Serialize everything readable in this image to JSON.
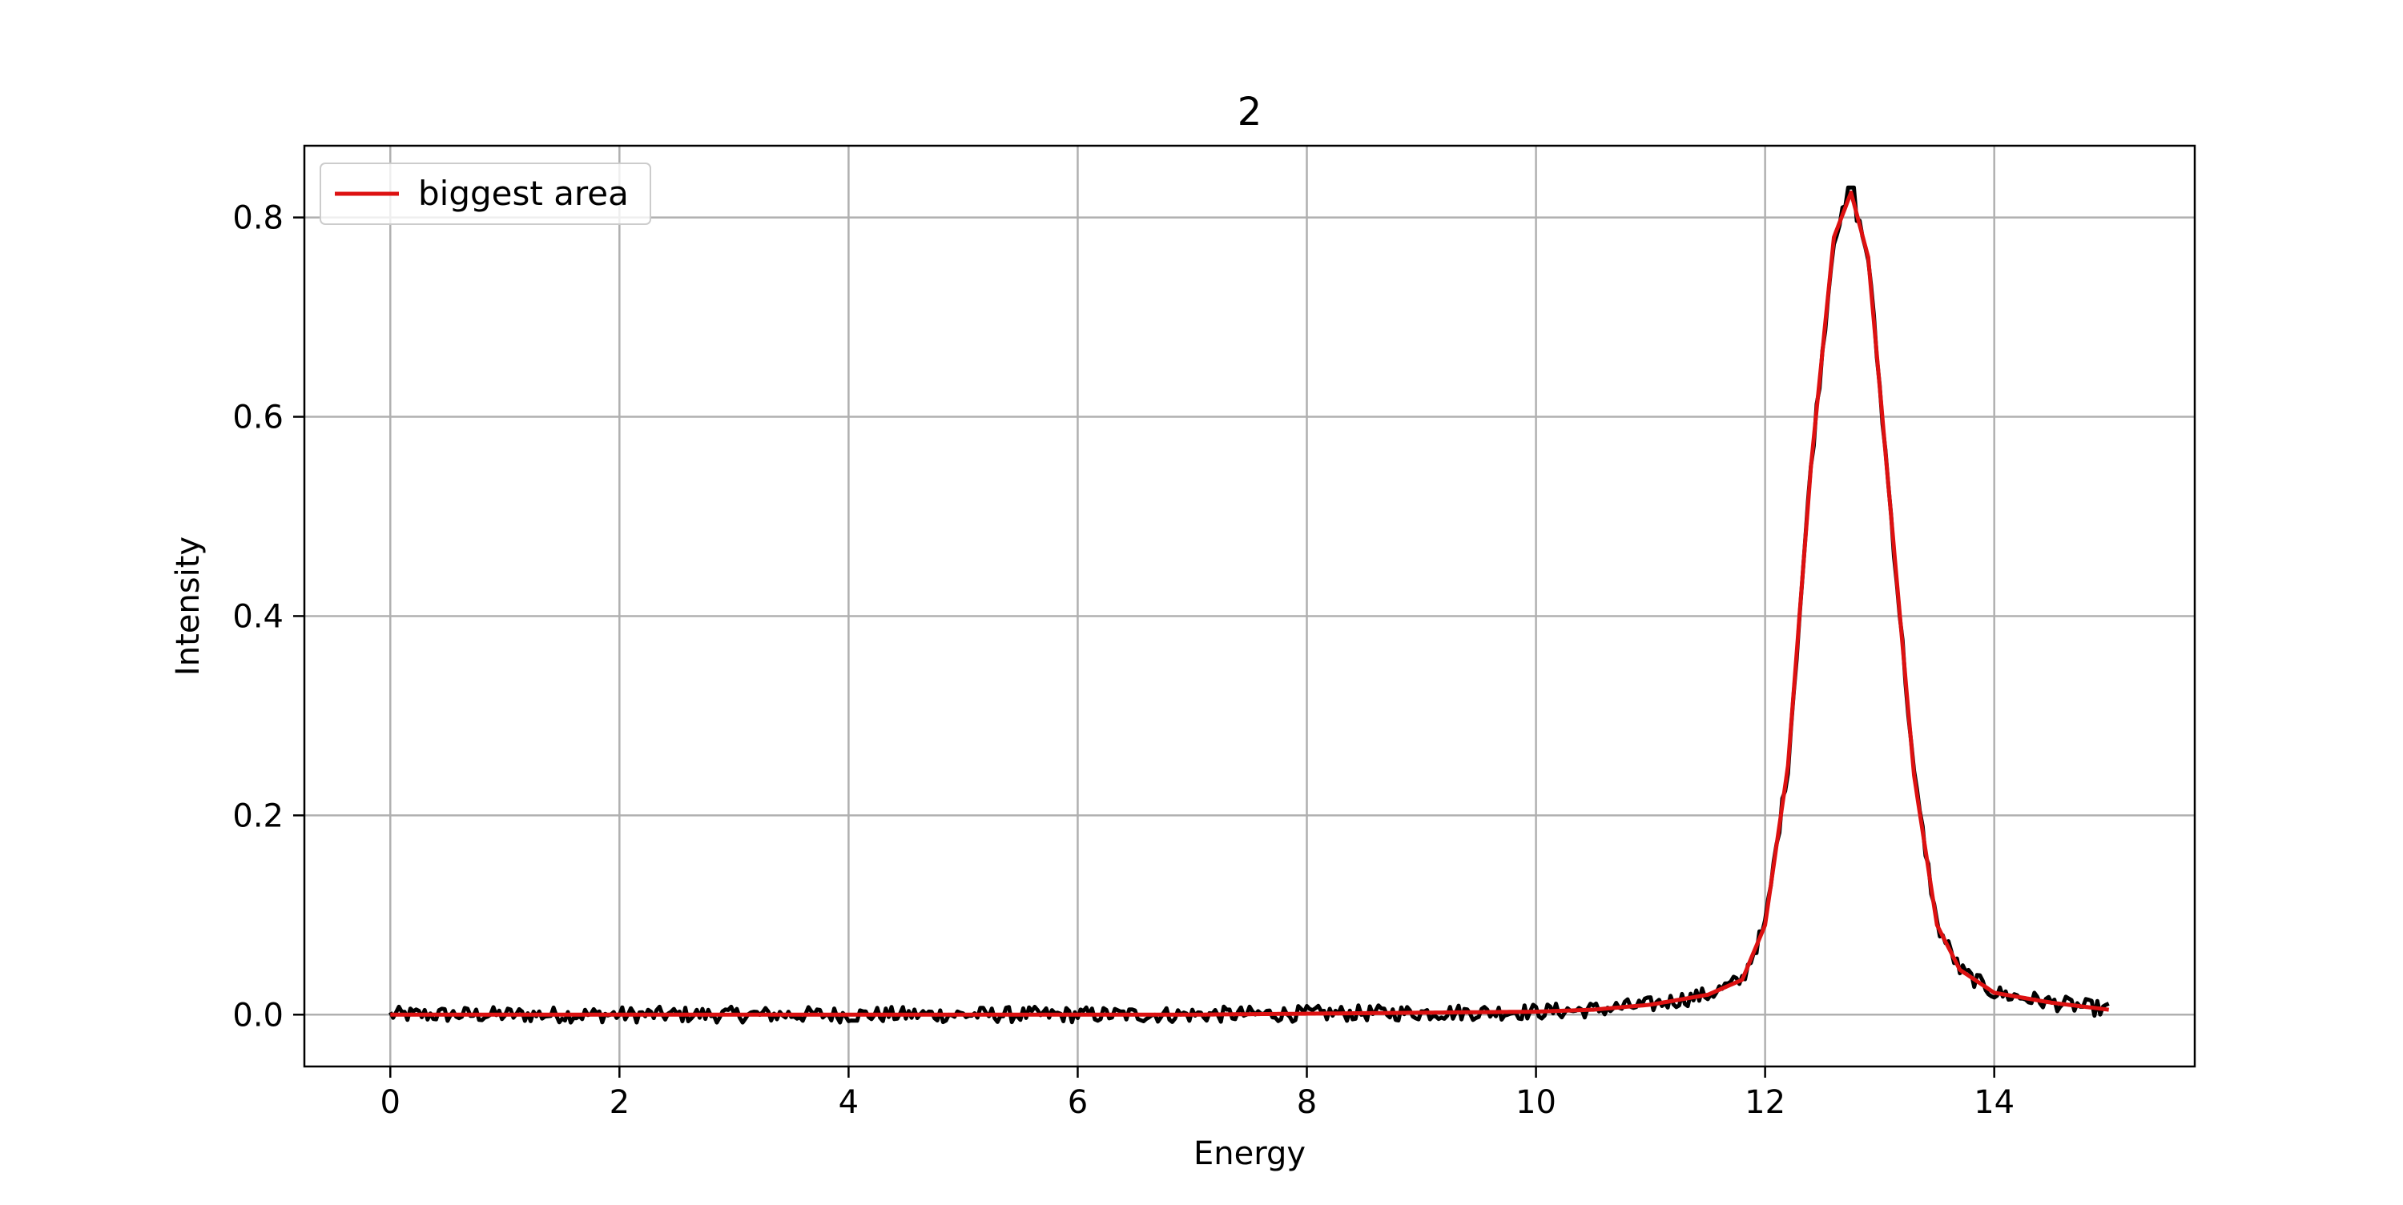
{
  "chart_data": {
    "type": "line",
    "title": "2",
    "xlabel": "Energy",
    "ylabel": "Intensity",
    "xlim": [
      -0.75,
      15.75
    ],
    "ylim": [
      -0.052,
      0.872
    ],
    "xticks": [
      0,
      2,
      4,
      6,
      8,
      10,
      12,
      14
    ],
    "xtick_labels": [
      "0",
      "2",
      "4",
      "6",
      "8",
      "10",
      "12",
      "14"
    ],
    "yticks": [
      0.0,
      0.2,
      0.4,
      0.6,
      0.8
    ],
    "ytick_labels": [
      "0.0",
      "0.2",
      "0.4",
      "0.6",
      "0.8"
    ],
    "grid": true,
    "legend": {
      "placement": "upper left",
      "entries": [
        "biggest area"
      ]
    },
    "series": [
      {
        "name": "",
        "color": "#000000",
        "style": "noisy data",
        "peak": {
          "center": 12.75,
          "height": 0.83
        },
        "baseline_noise": 0.008,
        "x_range": [
          0,
          15
        ],
        "tail": {
          "start": 10.5,
          "values": [
            0.004,
            0.012,
            0.025,
            0.03,
            0.02,
            0.01,
            0.006
          ]
        }
      },
      {
        "name": "biggest area",
        "color": "#dd1111",
        "style": "fit",
        "x": [
          0,
          1,
          2,
          3,
          4,
          5,
          6,
          7,
          8,
          9,
          10,
          10.5,
          11,
          11.5,
          11.8,
          12.0,
          12.2,
          12.4,
          12.6,
          12.75,
          12.9,
          13.1,
          13.3,
          13.5,
          13.7,
          14.0,
          14.5,
          15.0
        ],
        "values": [
          0.0,
          0.0,
          0.0,
          0.0,
          0.0,
          0.0,
          0.0,
          0.0,
          0.001,
          0.002,
          0.003,
          0.005,
          0.01,
          0.02,
          0.035,
          0.09,
          0.25,
          0.55,
          0.78,
          0.825,
          0.76,
          0.5,
          0.24,
          0.09,
          0.045,
          0.022,
          0.012,
          0.005
        ]
      }
    ]
  }
}
